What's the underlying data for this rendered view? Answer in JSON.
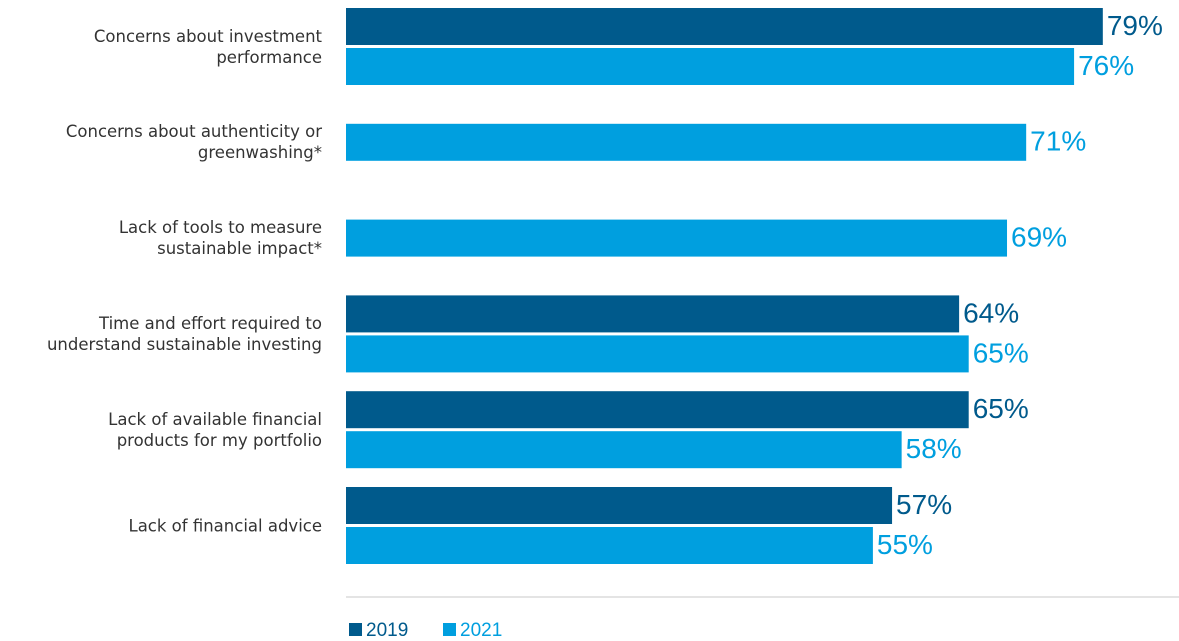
{
  "chart_data": {
    "type": "bar",
    "orientation": "horizontal",
    "categories": [
      "Concerns about investment\nperformance",
      "Concerns about authenticity or\ngreenwashing*",
      "Lack of tools to measure\nsustainable impact*",
      "Time and effort required to\nunderstand sustainable investing",
      "Lack of available financial\nproducts for my portfolio",
      "Lack of financial advice"
    ],
    "series": [
      {
        "name": "2019",
        "color": "#005a8c",
        "values": [
          79,
          null,
          null,
          64,
          65,
          57
        ],
        "value_labels": [
          "79%",
          null,
          null,
          "64%",
          "65%",
          "57%"
        ]
      },
      {
        "name": "2021",
        "color": "#009fdf",
        "values": [
          76,
          71,
          69,
          65,
          58,
          55
        ],
        "value_labels": [
          "76%",
          "71%",
          "69%",
          "65%",
          "58%",
          "55%"
        ]
      }
    ]
  }
}
